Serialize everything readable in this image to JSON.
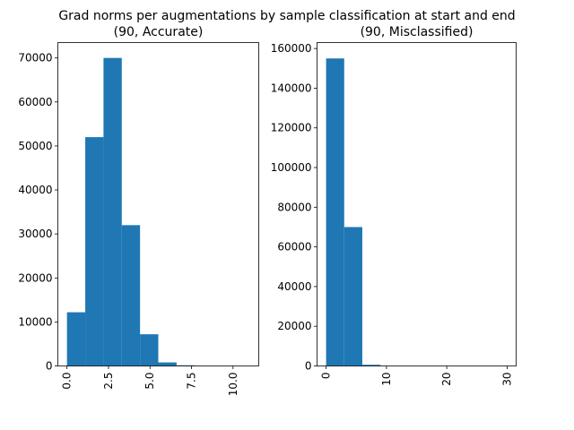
{
  "figure": {
    "suptitle": "Grad norms per augmentations by sample classification at start and end"
  },
  "chart_data": [
    {
      "type": "bar",
      "title": "(90, Accurate)",
      "xlabel": "",
      "ylabel": "",
      "bin_edges": [
        0.0,
        1.1,
        2.2,
        3.3,
        4.4,
        5.5,
        6.6,
        7.7,
        8.8,
        9.9,
        11.0
      ],
      "values": [
        12200,
        52000,
        70000,
        32000,
        7200,
        800,
        150,
        30,
        5,
        2
      ],
      "xlim": [
        -0.55,
        11.55
      ],
      "ylim": [
        0,
        73500
      ],
      "xticks": [
        "0.0",
        "2.5",
        "5.0",
        "7.5",
        "10.0"
      ],
      "xtick_values": [
        0,
        2.5,
        5,
        7.5,
        10
      ],
      "yticks": [
        "0",
        "10000",
        "20000",
        "30000",
        "40000",
        "50000",
        "60000",
        "70000"
      ],
      "ytick_values": [
        0,
        10000,
        20000,
        30000,
        40000,
        50000,
        60000,
        70000
      ],
      "color": "#1f77b4",
      "grid": false
    },
    {
      "type": "bar",
      "title": "(90, Misclassified)",
      "xlabel": "",
      "ylabel": "",
      "bin_edges": [
        0.0,
        3.0,
        6.0,
        9.0,
        12.0,
        15.0,
        18.0,
        21.0,
        24.0,
        27.0,
        30.0
      ],
      "values": [
        155000,
        70000,
        600,
        40,
        10,
        5,
        3,
        2,
        1,
        1
      ],
      "xlim": [
        -1.5,
        31.5
      ],
      "ylim": [
        0,
        163000
      ],
      "xticks": [
        "0",
        "10",
        "20",
        "30"
      ],
      "xtick_values": [
        0,
        10,
        20,
        30
      ],
      "yticks": [
        "0",
        "20000",
        "40000",
        "60000",
        "80000",
        "100000",
        "120000",
        "140000",
        "160000"
      ],
      "ytick_values": [
        0,
        20000,
        40000,
        60000,
        80000,
        100000,
        120000,
        140000,
        160000
      ],
      "color": "#1f77b4",
      "grid": false
    }
  ]
}
